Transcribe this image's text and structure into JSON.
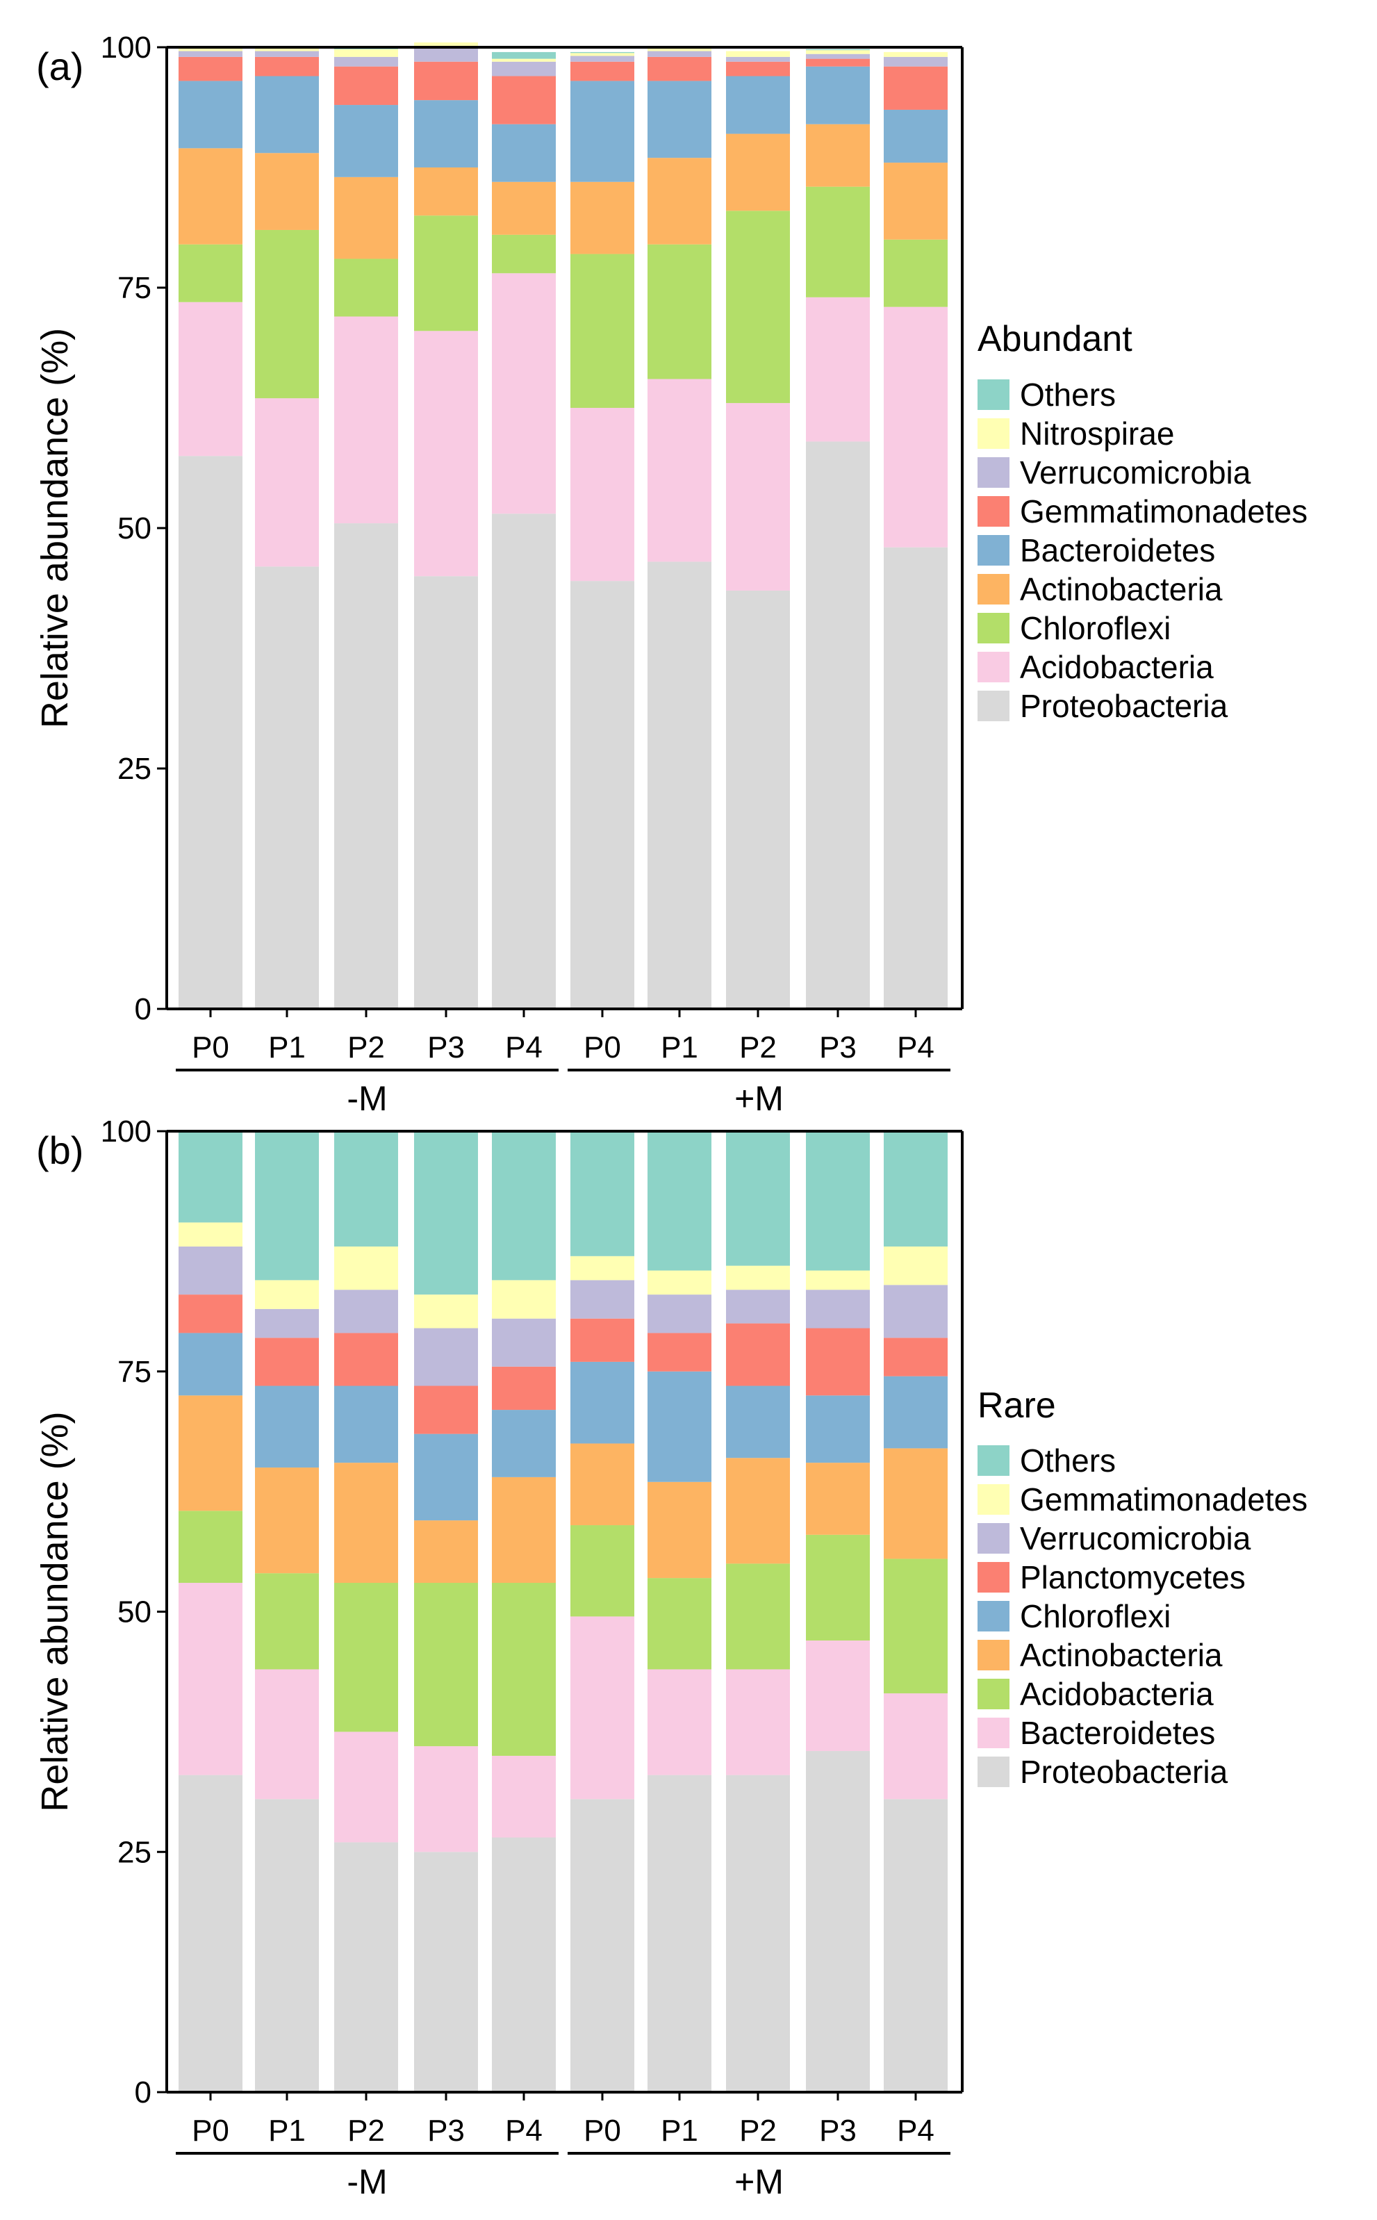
{
  "chart_data": [
    {
      "panel_label": "(a)",
      "type": "bar",
      "stacked": true,
      "ylabel": "Relative abundance (%)",
      "ylim": [
        0,
        100
      ],
      "yticks": [
        "0",
        "25",
        "50",
        "75",
        "100"
      ],
      "categories": [
        "P0",
        "P1",
        "P2",
        "P3",
        "P4",
        "P0",
        "P1",
        "P2",
        "P3",
        "P4"
      ],
      "groups": [
        {
          "label": "-M",
          "start": 0,
          "end": 4
        },
        {
          "label": "+M",
          "start": 5,
          "end": 9
        }
      ],
      "legend_title": "Abundant",
      "legend_position": "right",
      "series": [
        {
          "name": "Proteobacteria",
          "color": "#d9d9d9",
          "values": [
            57.5,
            46,
            50.5,
            45,
            51.5,
            44.5,
            46.5,
            43.5,
            59,
            48
          ]
        },
        {
          "name": "Acidobacteria",
          "color": "#f9cbe3",
          "values": [
            16,
            17.5,
            21.5,
            25.5,
            25,
            18,
            19,
            19.5,
            15,
            25
          ]
        },
        {
          "name": "Chloroflexi",
          "color": "#b3de69",
          "values": [
            6,
            17.5,
            6,
            12,
            4,
            16,
            14,
            20,
            11.5,
            7
          ]
        },
        {
          "name": "Actinobacteria",
          "color": "#fdb462",
          "values": [
            10,
            8,
            8.5,
            5,
            5.5,
            7.5,
            9,
            8,
            6.5,
            8
          ]
        },
        {
          "name": "Bacteroidetes",
          "color": "#80b1d3",
          "values": [
            7,
            8,
            7.5,
            7,
            6,
            10.5,
            8,
            6,
            6,
            5.5
          ]
        },
        {
          "name": "Gemmatimonadetes",
          "color": "#fb8072",
          "values": [
            2.5,
            2,
            4,
            4,
            5,
            2,
            2.5,
            1.5,
            0.8,
            4.5
          ]
        },
        {
          "name": "Verrucomicrobia",
          "color": "#bebada",
          "values": [
            0.6,
            0.6,
            1,
            1.5,
            1.5,
            0.6,
            0.6,
            0.5,
            0.5,
            1
          ]
        },
        {
          "name": "Nitrospirae",
          "color": "#ffffb3",
          "values": [
            0.3,
            0.3,
            0.8,
            0.5,
            0.3,
            0.3,
            0.3,
            0.6,
            0.4,
            0.5
          ]
        },
        {
          "name": "Others",
          "color": "#8dd3c7",
          "values": [
            0.1,
            0.1,
            0.2,
            0,
            0.7,
            0.1,
            0.1,
            0,
            0.1,
            0
          ]
        }
      ]
    },
    {
      "panel_label": "(b)",
      "type": "bar",
      "stacked": true,
      "ylabel": "Relative abundance (%)",
      "ylim": [
        0,
        100
      ],
      "yticks": [
        "0",
        "25",
        "50",
        "75",
        "100"
      ],
      "categories": [
        "P0",
        "P1",
        "P2",
        "P3",
        "P4",
        "P0",
        "P1",
        "P2",
        "P3",
        "P4"
      ],
      "groups": [
        {
          "label": "-M",
          "start": 0,
          "end": 4
        },
        {
          "label": "+M",
          "start": 5,
          "end": 9
        }
      ],
      "legend_title": "Rare",
      "legend_position": "right",
      "series": [
        {
          "name": "Proteobacteria",
          "color": "#d9d9d9",
          "values": [
            33,
            30.5,
            26,
            25,
            26.5,
            30.5,
            33,
            33,
            35.5,
            30.5
          ]
        },
        {
          "name": "Bacteroidetes",
          "color": "#f9cbe3",
          "values": [
            20,
            13.5,
            11.5,
            11,
            8.5,
            19,
            11,
            11,
            11.5,
            11
          ]
        },
        {
          "name": "Acidobacteria",
          "color": "#b3de69",
          "values": [
            7.5,
            10,
            15.5,
            17,
            18,
            9.5,
            9.5,
            11,
            11,
            14
          ]
        },
        {
          "name": "Actinobacteria",
          "color": "#fdb462",
          "values": [
            12,
            11,
            12.5,
            6.5,
            11,
            8.5,
            10,
            11,
            7.5,
            11.5
          ]
        },
        {
          "name": "Chloroflexi",
          "color": "#80b1d3",
          "values": [
            6.5,
            8.5,
            8,
            9,
            7,
            8.5,
            11.5,
            7.5,
            7,
            7.5
          ]
        },
        {
          "name": "Planctomycetes",
          "color": "#fb8072",
          "values": [
            4,
            5,
            5.5,
            5,
            4.5,
            4.5,
            4,
            6.5,
            7,
            4
          ]
        },
        {
          "name": "Verrucomicrobia",
          "color": "#bebada",
          "values": [
            5,
            3,
            4.5,
            6,
            5,
            4,
            4,
            3.5,
            4,
            5.5
          ]
        },
        {
          "name": "Gemmatimonadetes",
          "color": "#ffffb3",
          "values": [
            2.5,
            3,
            4.5,
            3.5,
            4,
            2.5,
            2.5,
            2.5,
            2,
            4
          ]
        },
        {
          "name": "Others",
          "color": "#8dd3c7",
          "values": [
            9.5,
            15.5,
            12,
            17,
            15.5,
            13,
            14.5,
            14,
            14.5,
            12
          ]
        }
      ]
    }
  ]
}
